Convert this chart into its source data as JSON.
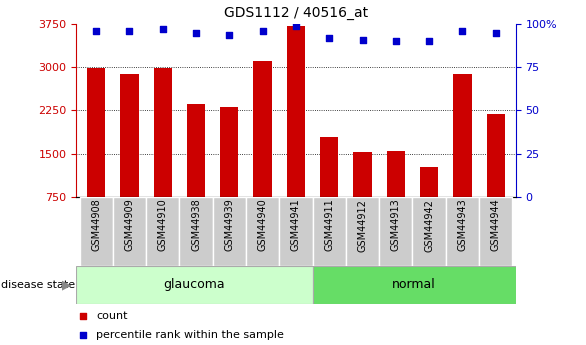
{
  "title": "GDS1112 / 40516_at",
  "samples": [
    "GSM44908",
    "GSM44909",
    "GSM44910",
    "GSM44938",
    "GSM44939",
    "GSM44940",
    "GSM44941",
    "GSM44911",
    "GSM44912",
    "GSM44913",
    "GSM44942",
    "GSM44943",
    "GSM44944"
  ],
  "counts": [
    2980,
    2890,
    2990,
    2370,
    2310,
    3110,
    3720,
    1780,
    1530,
    1540,
    1260,
    2890,
    2190
  ],
  "percentiles": [
    96,
    96,
    97,
    95,
    94,
    96,
    99,
    92,
    91,
    90,
    90,
    96,
    95
  ],
  "groups": [
    "glaucoma",
    "glaucoma",
    "glaucoma",
    "glaucoma",
    "glaucoma",
    "glaucoma",
    "glaucoma",
    "normal",
    "normal",
    "normal",
    "normal",
    "normal",
    "normal"
  ],
  "bar_color": "#cc0000",
  "dot_color": "#0000cc",
  "glaucoma_bg": "#ccffcc",
  "normal_bg": "#66dd66",
  "label_bg": "#cccccc",
  "ymin": 750,
  "ymax": 3750,
  "yticks": [
    750,
    1500,
    2250,
    3000,
    3750
  ],
  "right_yticks": [
    0,
    25,
    50,
    75,
    100
  ],
  "grid_lines": [
    1500,
    2250,
    3000
  ]
}
